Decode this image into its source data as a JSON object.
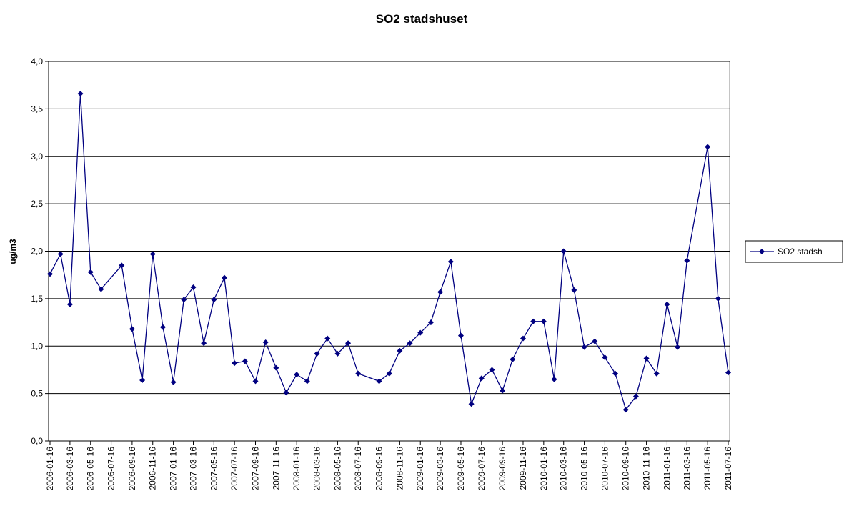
{
  "chart_data": {
    "type": "line",
    "title": "SO2 stadshuset",
    "y_label": "ug/m3",
    "x": [
      "2006-01-16",
      "2006-02-16",
      "2006-03-16",
      "2006-04-16",
      "2006-05-16",
      "2006-06-16",
      "2006-08-16",
      "2006-09-16",
      "2006-10-16",
      "2006-11-16",
      "2006-12-16",
      "2007-01-16",
      "2007-02-16",
      "2007-03-16",
      "2007-04-16",
      "2007-05-16",
      "2007-06-16",
      "2007-07-16",
      "2007-08-16",
      "2007-09-16",
      "2007-10-16",
      "2007-11-16",
      "2007-12-16",
      "2008-01-16",
      "2008-02-16",
      "2008-03-16",
      "2008-04-16",
      "2008-05-16",
      "2008-06-16",
      "2008-07-16",
      "2008-09-16",
      "2008-10-16",
      "2008-11-16",
      "2008-12-16",
      "2009-01-16",
      "2009-02-16",
      "2009-03-16",
      "2009-04-16",
      "2009-05-16",
      "2009-06-16",
      "2009-07-16",
      "2009-08-16",
      "2009-09-16",
      "2009-10-16",
      "2009-11-16",
      "2009-12-16",
      "2010-01-16",
      "2010-02-16",
      "2010-03-16",
      "2010-04-16",
      "2010-05-16",
      "2010-06-16",
      "2010-07-16",
      "2010-08-16",
      "2010-09-16",
      "2010-10-16",
      "2010-11-16",
      "2010-12-16",
      "2011-01-16",
      "2011-02-16",
      "2011-03-16",
      "2011-05-16",
      "2011-06-16",
      "2011-07-16"
    ],
    "series": [
      {
        "name": "SO2 stadsh",
        "color": "#000080",
        "values": [
          1.76,
          1.97,
          1.44,
          3.66,
          1.78,
          1.6,
          1.85,
          1.18,
          0.64,
          1.97,
          1.2,
          0.62,
          1.49,
          1.62,
          1.03,
          1.49,
          1.72,
          0.82,
          0.84,
          0.63,
          1.04,
          0.77,
          0.51,
          0.7,
          0.63,
          0.92,
          1.08,
          0.92,
          1.03,
          0.71,
          0.63,
          0.71,
          0.95,
          1.03,
          1.14,
          1.25,
          1.57,
          1.89,
          1.11,
          0.39,
          0.66,
          0.75,
          0.53,
          0.86,
          1.08,
          1.26,
          1.26,
          0.65,
          2.0,
          1.59,
          0.99,
          1.05,
          0.88,
          0.71,
          0.33,
          0.47,
          0.87,
          0.71,
          1.44,
          0.99,
          1.9,
          3.1,
          1.5,
          0.72
        ]
      }
    ],
    "xlim": [
      "2006-01-16",
      "2011-07-16"
    ],
    "xticks": [
      "2006-01-16",
      "2006-03-16",
      "2006-05-16",
      "2006-07-16",
      "2006-09-16",
      "2006-11-16",
      "2007-01-16",
      "2007-03-16",
      "2007-05-16",
      "2007-07-16",
      "2007-09-16",
      "2007-11-16",
      "2008-01-16",
      "2008-03-16",
      "2008-05-16",
      "2008-07-16",
      "2008-09-16",
      "2008-11-16",
      "2009-01-16",
      "2009-03-16",
      "2009-05-16",
      "2009-07-16",
      "2009-09-16",
      "2009-11-16",
      "2010-01-16",
      "2010-03-16",
      "2010-05-16",
      "2010-07-16",
      "2010-09-16",
      "2010-11-16",
      "2011-01-16",
      "2011-03-16",
      "2011-05-16",
      "2011-07-16"
    ],
    "ylim": [
      0,
      4
    ],
    "yticks": [
      {
        "value": 0,
        "label": "0,0"
      },
      {
        "value": 0.5,
        "label": "0,5"
      },
      {
        "value": 1,
        "label": "1,0"
      },
      {
        "value": 1.5,
        "label": "1,5"
      },
      {
        "value": 2,
        "label": "2,0"
      },
      {
        "value": 2.5,
        "label": "2,5"
      },
      {
        "value": 3,
        "label": "3,0"
      },
      {
        "value": 3.5,
        "label": "3,5"
      },
      {
        "value": 4,
        "label": "4,0"
      }
    ],
    "grid": true,
    "legend": "right"
  }
}
